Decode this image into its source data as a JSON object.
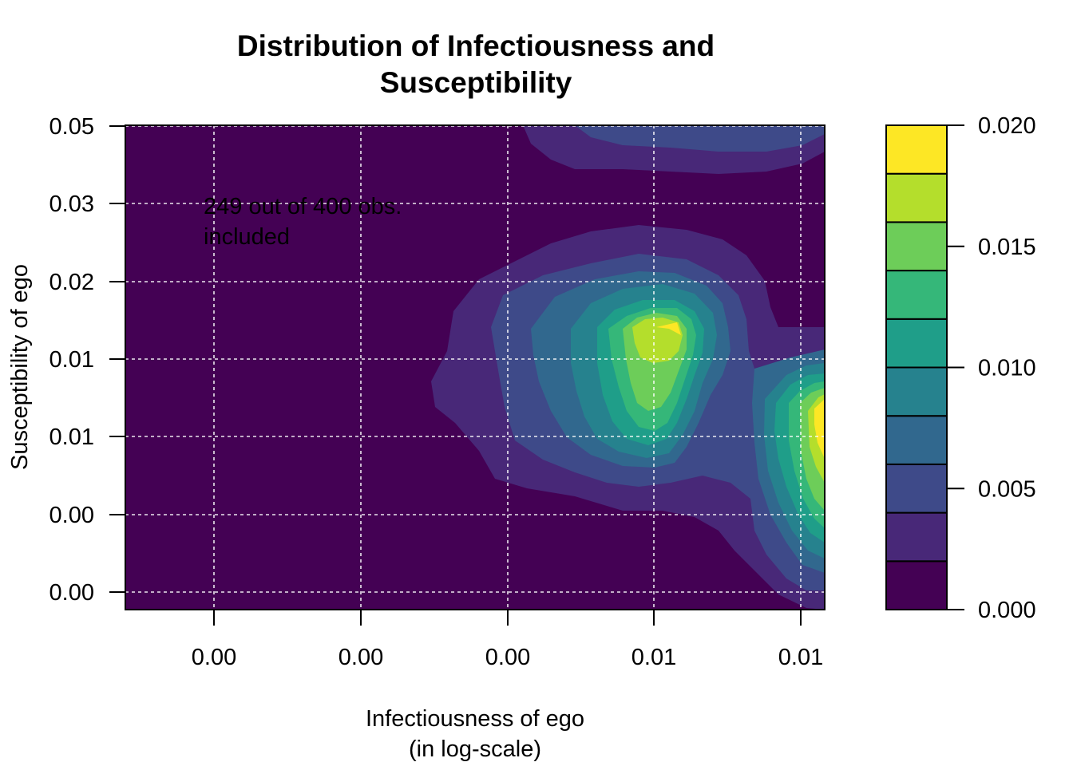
{
  "chart_data": {
    "type": "filled-contour",
    "title_lines": [
      "Distribution of Infectiousness and",
      "Susceptibility"
    ],
    "xlabel_lines": [
      "Infectiousness of ego",
      "(in log-scale)"
    ],
    "ylabel": "Susceptibility of ego",
    "x_tick_labels": [
      "0.00",
      "0.00",
      "0.00",
      "0.01",
      "0.01"
    ],
    "y_tick_labels": [
      "0.00",
      "0.00",
      "0.01",
      "0.01",
      "0.02",
      "0.03",
      "0.05"
    ],
    "grid": true,
    "annotation_lines": [
      "249 out of 400 obs.",
      "included"
    ],
    "annotation_placement": "top-left",
    "legend": {
      "placement": "right",
      "tick_labels": [
        "0.000",
        "0.005",
        "0.010",
        "0.015",
        "0.020"
      ],
      "level_breaks": [
        0.0,
        0.002,
        0.004,
        0.006,
        0.008,
        0.01,
        0.012,
        0.014,
        0.016,
        0.018,
        0.02
      ],
      "colors": [
        "#440154",
        "#482878",
        "#3E4A89",
        "#31688E",
        "#26828E",
        "#1F9E89",
        "#35B779",
        "#6DCD59",
        "#B4DE2C",
        "#FDE725"
      ]
    },
    "density_peaks": [
      {
        "location": "center-right",
        "level_index": 9
      },
      {
        "location": "right-edge",
        "level_index": 9
      },
      {
        "location": "top",
        "level_index": 2
      }
    ]
  }
}
